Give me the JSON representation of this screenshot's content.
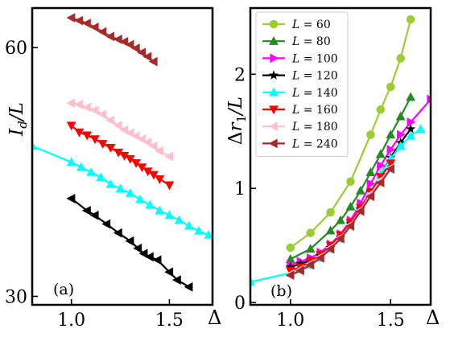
{
  "chart_data": [
    {
      "panel_label": "(a)",
      "type": "line",
      "xlabel": "Δ",
      "ylabel": "I_d/L",
      "xlim": [
        0.8,
        1.72
      ],
      "ylim": [
        29.3,
        67.0
      ],
      "y_scale": "log",
      "x_ticks": [
        "1.0",
        "1.5"
      ],
      "y_ticks": [
        "30",
        "60"
      ],
      "grid": false,
      "series": [
        {
          "color": "#000000",
          "marker": "left-triangle",
          "x": [
            1.0,
            1.08,
            1.12,
            1.18,
            1.24,
            1.3,
            1.34,
            1.37,
            1.4,
            1.44,
            1.5,
            1.54,
            1.6
          ],
          "y": [
            39.4,
            38.1,
            37.6,
            36.7,
            35.8,
            35.0,
            34.3,
            33.8,
            33.5,
            33.2,
            32.1,
            31.4,
            30.8
          ]
        },
        {
          "color": "#00ffff",
          "marker": "triangle-up",
          "x": [
            0.8,
            1.0,
            1.05,
            1.1,
            1.15,
            1.2,
            1.25,
            1.3,
            1.35,
            1.4,
            1.45,
            1.5,
            1.55,
            1.6,
            1.65,
            1.7
          ],
          "y": [
            45.6,
            43.6,
            43.0,
            42.4,
            41.8,
            41.0,
            40.5,
            40.0,
            39.3,
            38.7,
            38.1,
            37.6,
            37.1,
            36.5,
            36.0,
            35.6
          ]
        },
        {
          "color": "#ff0000",
          "marker": "triangle-down",
          "x": [
            1.0,
            1.04,
            1.08,
            1.12,
            1.16,
            1.2,
            1.24,
            1.27,
            1.3,
            1.33,
            1.36,
            1.39,
            1.42,
            1.45,
            1.5
          ],
          "y": [
            48.3,
            47.4,
            47.0,
            46.5,
            45.9,
            45.4,
            44.8,
            44.4,
            44.0,
            43.5,
            43.0,
            42.5,
            42.1,
            41.6,
            40.9
          ]
        },
        {
          "color": "#ffc0cb",
          "marker": "left-triangle",
          "x": [
            1.0,
            1.04,
            1.08,
            1.12,
            1.16,
            1.2,
            1.24,
            1.27,
            1.3,
            1.33,
            1.36,
            1.39,
            1.42,
            1.45,
            1.5
          ],
          "y": [
            51.4,
            51.2,
            50.8,
            50.4,
            49.8,
            49.0,
            48.3,
            47.7,
            47.3,
            46.9,
            46.5,
            46.1,
            45.6,
            45.0,
            44.3
          ]
        },
        {
          "color": "#a52a2a",
          "marker": "left-triangle",
          "x": [
            1.0,
            1.04,
            1.08,
            1.12,
            1.16,
            1.2,
            1.24,
            1.27,
            1.3,
            1.33,
            1.36,
            1.39,
            1.42
          ],
          "y": [
            65.2,
            64.7,
            64.2,
            63.5,
            62.7,
            61.9,
            61.4,
            61.0,
            60.5,
            59.9,
            59.2,
            58.5,
            57.7
          ]
        }
      ]
    },
    {
      "panel_label": "(b)",
      "type": "line",
      "xlabel": "Δ",
      "ylabel": "Δr_1/L",
      "xlim": [
        0.8,
        1.7
      ],
      "ylim": [
        -0.02,
        2.58
      ],
      "x_ticks": [
        "1.0",
        "1.5"
      ],
      "y_ticks": [
        "0",
        "1",
        "2"
      ],
      "grid": false,
      "legend_position": "top-left",
      "legend": [
        "L = 60",
        "L = 80",
        "L = 100",
        "L = 120",
        "L = 140",
        "L = 160",
        "L = 180",
        "L = 240"
      ],
      "series": [
        {
          "name": "L = 60",
          "color": "#9acd32",
          "marker": "circle",
          "x": [
            1.0,
            1.1,
            1.2,
            1.3,
            1.4,
            1.45,
            1.5,
            1.55,
            1.6
          ],
          "y": [
            0.48,
            0.61,
            0.79,
            1.06,
            1.47,
            1.69,
            1.89,
            2.14,
            2.48
          ]
        },
        {
          "name": "L = 80",
          "color": "#228b22",
          "marker": "triangle-up",
          "x": [
            1.0,
            1.1,
            1.2,
            1.25,
            1.3,
            1.35,
            1.4,
            1.45,
            1.5,
            1.55,
            1.6
          ],
          "y": [
            0.38,
            0.47,
            0.63,
            0.72,
            0.84,
            0.98,
            1.14,
            1.3,
            1.47,
            1.63,
            1.8
          ]
        },
        {
          "name": "L = 100",
          "color": "#ff00ff",
          "marker": "right-triangle",
          "x": [
            1.0,
            1.05,
            1.1,
            1.15,
            1.2,
            1.25,
            1.3,
            1.35,
            1.4,
            1.45,
            1.5,
            1.55,
            1.6,
            1.7
          ],
          "y": [
            0.33,
            0.36,
            0.39,
            0.44,
            0.51,
            0.6,
            0.72,
            0.87,
            1.04,
            1.2,
            1.34,
            1.47,
            1.58,
            1.78
          ]
        },
        {
          "name": "L = 120",
          "color": "#000000",
          "marker": "star",
          "x": [
            1.0,
            1.05,
            1.1,
            1.15,
            1.2,
            1.25,
            1.3,
            1.35,
            1.4,
            1.45,
            1.5,
            1.55,
            1.6
          ],
          "y": [
            0.31,
            0.34,
            0.37,
            0.41,
            0.48,
            0.57,
            0.69,
            0.82,
            0.97,
            1.12,
            1.27,
            1.4,
            1.52
          ]
        },
        {
          "name": "L = 140",
          "color": "#00ffff",
          "marker": "triangle-up",
          "x": [
            0.8,
            1.0,
            1.05,
            1.1,
            1.15,
            1.2,
            1.25,
            1.3,
            1.35,
            1.4,
            1.45,
            1.5,
            1.55,
            1.6,
            1.65
          ],
          "y": [
            0.18,
            0.26,
            0.29,
            0.33,
            0.39,
            0.47,
            0.56,
            0.68,
            0.82,
            0.97,
            1.12,
            1.26,
            1.37,
            1.46,
            1.52
          ]
        },
        {
          "name": "L = 160",
          "color": "#ff0000",
          "marker": "triangle-down",
          "x": [
            1.0,
            1.05,
            1.1,
            1.15,
            1.2,
            1.25,
            1.3,
            1.35,
            1.4,
            1.45,
            1.5
          ],
          "y": [
            0.28,
            0.31,
            0.36,
            0.42,
            0.5,
            0.59,
            0.7,
            0.83,
            0.97,
            1.1,
            1.22
          ]
        },
        {
          "name": "L = 180",
          "color": "#ffc0cb",
          "marker": "left-triangle",
          "x": [
            1.0,
            1.05,
            1.1,
            1.15,
            1.2,
            1.25,
            1.3,
            1.35,
            1.4,
            1.45,
            1.5
          ],
          "y": [
            0.25,
            0.29,
            0.34,
            0.4,
            0.48,
            0.57,
            0.68,
            0.81,
            0.95,
            1.07,
            1.18
          ]
        },
        {
          "name": "L = 240",
          "color": "#a52a2a",
          "marker": "left-triangle",
          "x": [
            1.0,
            1.05,
            1.1,
            1.15,
            1.2,
            1.25,
            1.3,
            1.35,
            1.4,
            1.45,
            1.5
          ],
          "y": [
            0.24,
            0.28,
            0.33,
            0.39,
            0.47,
            0.56,
            0.67,
            0.8,
            0.93,
            1.05,
            1.17
          ]
        }
      ]
    }
  ]
}
